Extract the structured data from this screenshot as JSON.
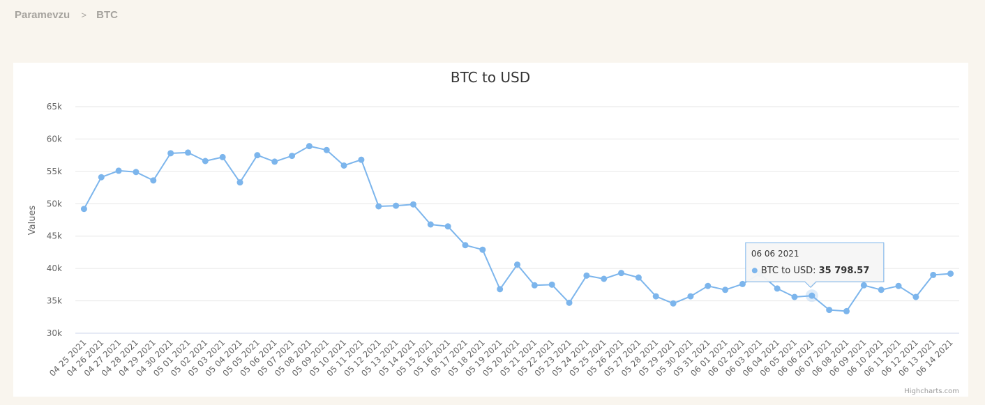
{
  "breadcrumb": {
    "root": "Paramevzu",
    "separator": ">",
    "current": "BTC"
  },
  "credits": "Highcharts.com",
  "tooltip": {
    "date": "06 06 2021",
    "series_label": "BTC to USD:",
    "value": "35 798.57"
  },
  "colors": {
    "series": "#7cb5ec",
    "grid": "#e6e6e6",
    "page_bg": "#f9f5ee"
  },
  "chart_data": {
    "type": "line",
    "title": "BTC to USD",
    "ylabel": "Values",
    "xlabel": "",
    "ylim": [
      30000,
      65000
    ],
    "yticks": [
      30000,
      35000,
      40000,
      45000,
      50000,
      55000,
      60000,
      65000
    ],
    "ytick_labels": [
      "30k",
      "35k",
      "40k",
      "45k",
      "50k",
      "55k",
      "60k",
      "65k"
    ],
    "grid": true,
    "legend": "none",
    "categories": [
      "04 25 2021",
      "04 26 2021",
      "04 27 2021",
      "04 28 2021",
      "04 29 2021",
      "04 30 2021",
      "05 01 2021",
      "05 02 2021",
      "05 03 2021",
      "05 04 2021",
      "05 05 2021",
      "05 06 2021",
      "05 07 2021",
      "05 08 2021",
      "05 09 2021",
      "05 10 2021",
      "05 11 2021",
      "05 12 2021",
      "05 13 2021",
      "05 14 2021",
      "05 15 2021",
      "05 16 2021",
      "05 17 2021",
      "05 18 2021",
      "05 19 2021",
      "05 20 2021",
      "05 21 2021",
      "05 22 2021",
      "05 23 2021",
      "05 24 2021",
      "05 25 2021",
      "05 26 2021",
      "05 27 2021",
      "05 28 2021",
      "05 29 2021",
      "05 30 2021",
      "05 31 2021",
      "06 01 2021",
      "06 02 2021",
      "06 03 2021",
      "06 04 2021",
      "06 05 2021",
      "06 06 2021",
      "06 07 2021",
      "06 08 2021",
      "06 09 2021",
      "06 10 2021",
      "06 11 2021",
      "06 12 2021",
      "06 13 2021",
      "06 14 2021"
    ],
    "series": [
      {
        "name": "BTC to USD",
        "values": [
          49200,
          54100,
          55100,
          54900,
          53600,
          57800,
          57900,
          56600,
          57200,
          53300,
          57500,
          56500,
          57400,
          58900,
          58300,
          55900,
          56800,
          49600,
          49700,
          49900,
          46800,
          46500,
          43600,
          42900,
          36800,
          40600,
          37400,
          37500,
          34700,
          38900,
          38400,
          39300,
          38600,
          35700,
          34600,
          35700,
          37300,
          36700,
          37600,
          39200,
          36900,
          35600,
          35798.57,
          33600,
          33400,
          37400,
          36700,
          37300,
          35600,
          39000,
          39200
        ]
      }
    ]
  }
}
